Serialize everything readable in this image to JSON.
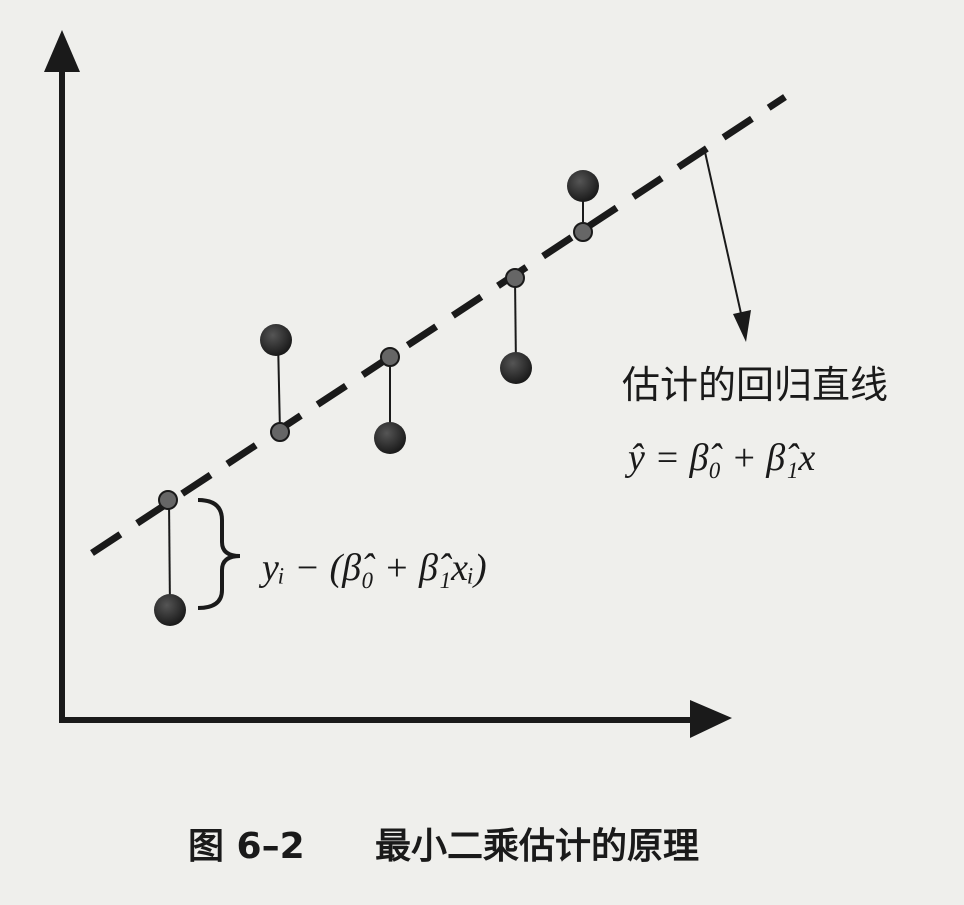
{
  "annotations": {
    "line_label": "估计的回归直线",
    "line_equation": "ŷ = β̂₀ + β̂₁x",
    "residual": "yᵢ − (β̂₀ + β̂₁xᵢ)"
  },
  "caption": {
    "number": "图 6–2",
    "title": "最小二乘估计的原理"
  }
}
